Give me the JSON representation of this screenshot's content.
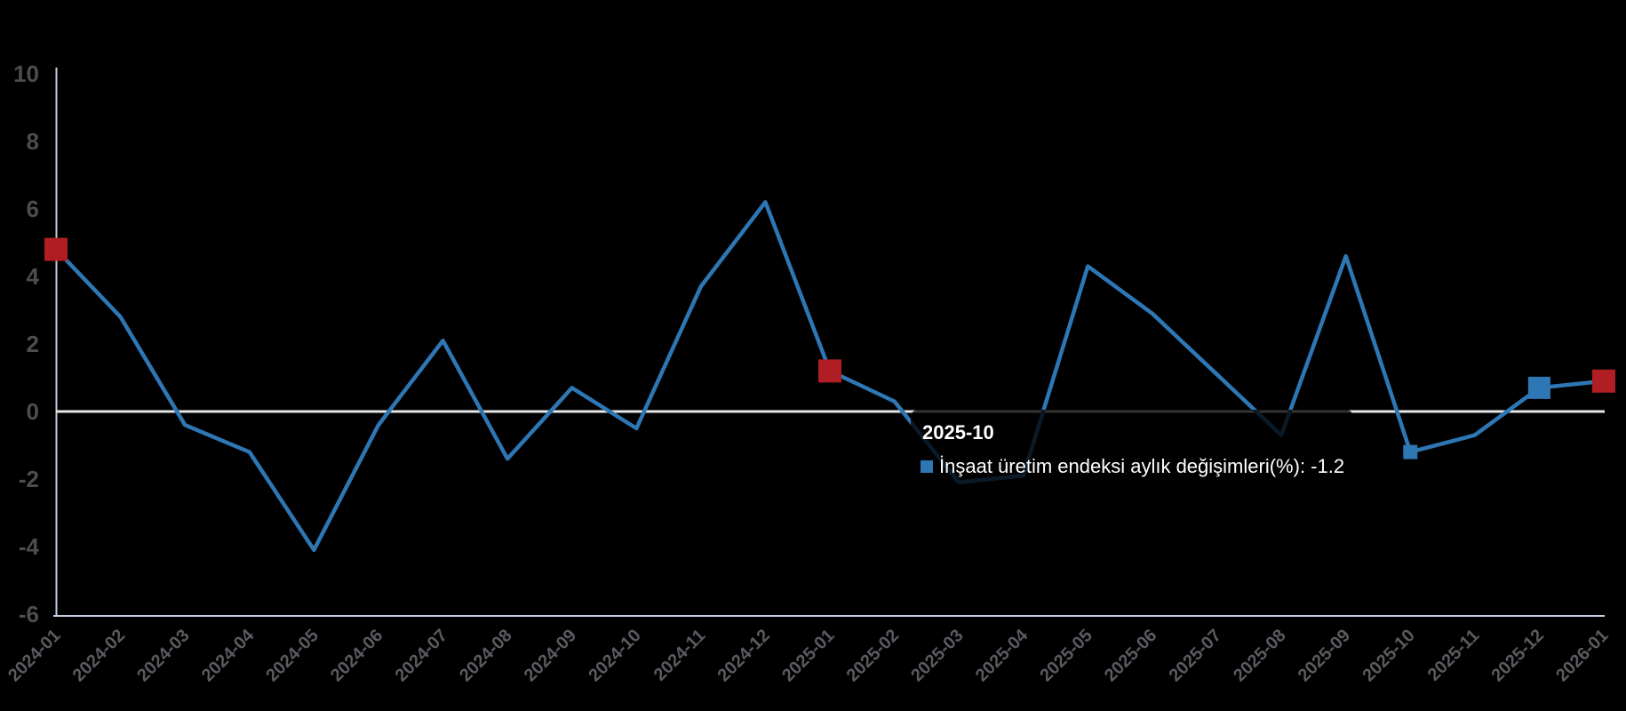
{
  "chart_data": {
    "type": "line",
    "title": "",
    "xlabel": "",
    "ylabel": "",
    "grid": false,
    "zero_plotline": true,
    "legend_position": "none",
    "ylim": [
      -6,
      10
    ],
    "yticks": [
      "10",
      "8",
      "6",
      "4",
      "2",
      "0",
      "-2",
      "-4",
      "-6"
    ],
    "categories": [
      "2024-01",
      "2024-02",
      "2024-03",
      "2024-04",
      "2024-05",
      "2024-06",
      "2024-07",
      "2024-08",
      "2024-09",
      "2024-10",
      "2024-11",
      "2024-12",
      "2025-01",
      "2025-02",
      "2025-03",
      "2025-04",
      "2025-05",
      "2025-06",
      "2025-07",
      "2025-08",
      "2025-09",
      "2025-10",
      "2025-11",
      "2025-12",
      "2026-01"
    ],
    "series": [
      {
        "name": "İnşaat üretim endeksi aylık değişimleri(%)",
        "values": [
          4.8,
          2.8,
          -0.4,
          -1.2,
          -4.1,
          -0.4,
          2.1,
          -1.4,
          0.7,
          -0.5,
          3.7,
          6.2,
          1.2,
          0.3,
          -2.1,
          -1.9,
          4.3,
          2.9,
          1.1,
          -0.7,
          4.6,
          -1.2,
          -0.7,
          0.7,
          0.9
        ]
      }
    ],
    "highlighted_points": [
      {
        "category": "2024-01",
        "marker": "red-square-large"
      },
      {
        "category": "2025-01",
        "marker": "red-square-large"
      },
      {
        "category": "2026-01",
        "marker": "red-square-large"
      },
      {
        "category": "2025-12",
        "marker": "blue-square-large"
      },
      {
        "category": "2025-10",
        "marker": "blue-square-small-hover"
      }
    ]
  },
  "tooltip": {
    "title": "2025-10",
    "series_label": "İnşaat üretim endeksi aylık değişimleri(%)",
    "separator": ": ",
    "value": "-1.2"
  },
  "colors": {
    "background": "#000000",
    "line": "#2e77b5",
    "blue_marker": "#2e77b5",
    "red_marker": "#b01e23",
    "zero_line": "#e6e6e6",
    "axis_line": "#c5cede",
    "y_label": "#4d4d50",
    "x_label": "#5a5b60",
    "tooltip_text": "#ffffff"
  }
}
